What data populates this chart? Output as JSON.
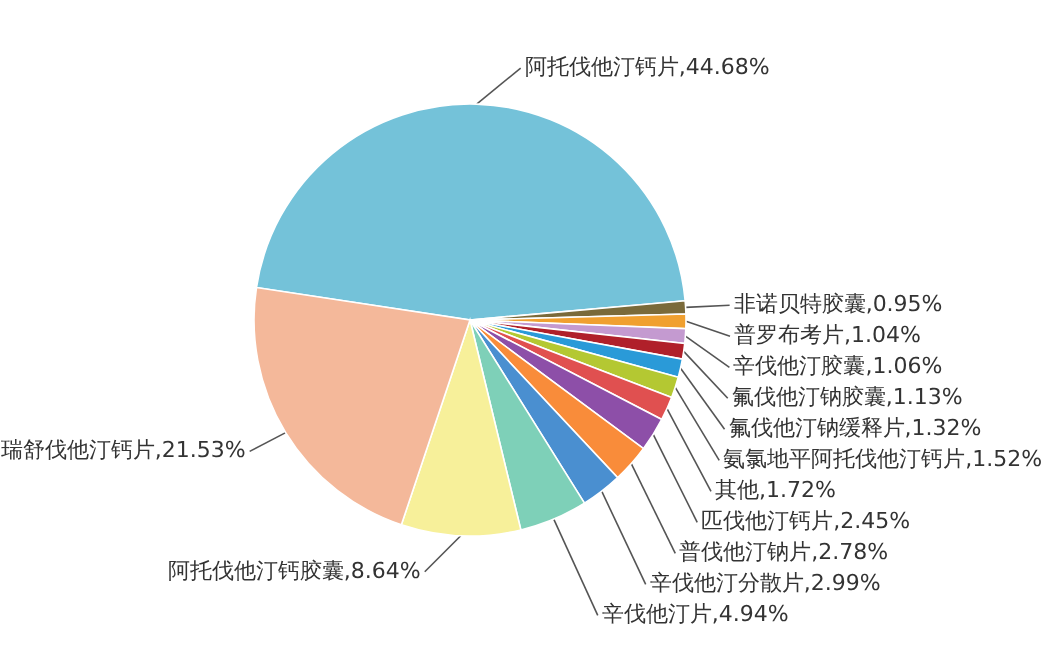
{
  "chart_data": {
    "type": "pie",
    "categories": [
      "阿托伐他汀钙片,44.68%",
      "非诺贝特胶囊,0.95%",
      "普罗布考片,1.04%",
      "辛伐他汀胶囊,1.06%",
      "氟伐他汀钠胶囊,1.13%",
      "氟伐他汀钠缓释片,1.32%",
      "氨氯地平阿托伐他汀钙片,1.52%",
      "其他,1.72%",
      "匹伐他汀钙片,2.45%",
      "普伐他汀钠片,2.78%",
      "辛伐他汀分散片,2.99%",
      "辛伐他汀片,4.94%",
      "阿托伐他汀钙胶囊,8.64%",
      "瑞舒伐他汀钙片,21.53%"
    ],
    "values": [
      44.68,
      0.95,
      1.04,
      1.06,
      1.13,
      1.32,
      1.52,
      1.72,
      2.45,
      2.78,
      2.99,
      4.94,
      8.64,
      21.53
    ],
    "colors": [
      "#74c2d9",
      "#7a6a3a",
      "#f0a030",
      "#c49ad0",
      "#b0202a",
      "#2a9ad8",
      "#b4c832",
      "#e05050",
      "#8d4fa8",
      "#f98c3a",
      "#4a8fd0",
      "#7ed0b8",
      "#f7f09a",
      "#f4b89a"
    ]
  }
}
